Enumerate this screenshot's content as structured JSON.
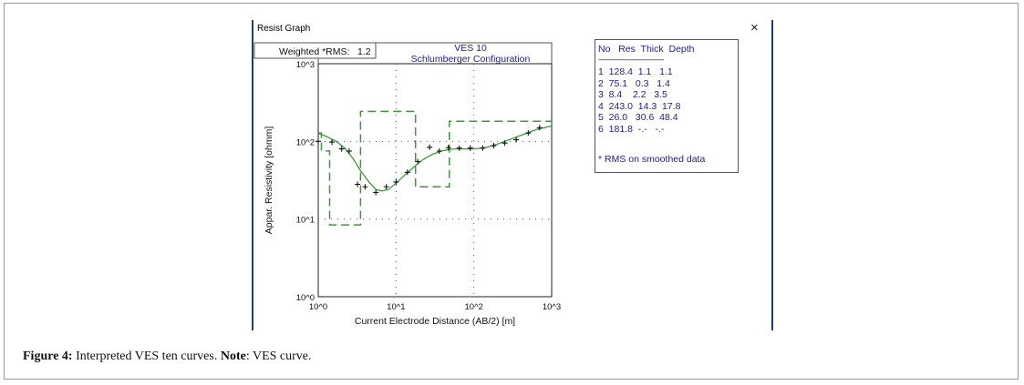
{
  "window": {
    "title": "Resist Graph",
    "close_glyph": "×"
  },
  "rms": {
    "label": "Weighted *RMS:",
    "value": "1.2"
  },
  "header": {
    "line1": "VES 10",
    "line2": "Schlumberger Configuration"
  },
  "layers": {
    "columns": [
      "No",
      "Res",
      "Thick",
      "Depth"
    ],
    "separator": "-------------------------------------------",
    "rows": [
      {
        "no": "1",
        "res": "128.4",
        "thick": "1.1",
        "depth": "1.1"
      },
      {
        "no": "2",
        "res": "75.1",
        "thick": "0.3",
        "depth": "1.4"
      },
      {
        "no": "3",
        "res": "8.4",
        "thick": "2.2",
        "depth": "3.5"
      },
      {
        "no": "4",
        "res": "243.0",
        "thick": "14.3",
        "depth": "17.8"
      },
      {
        "no": "5",
        "res": "26.0",
        "thick": "30.6",
        "depth": "48.4"
      },
      {
        "no": "6",
        "res": "181.8",
        "thick": "-.-",
        "depth": "-.-"
      }
    ],
    "note": "* RMS on smoothed data"
  },
  "caption": {
    "label": "Figure 4:",
    "text": " Interpreted VES ten curves. ",
    "note_label": "Note",
    "note_text": ":  VES curve."
  },
  "colors": {
    "curve": "#3a9a3a",
    "text_blue": "#1b1b9c",
    "window_edge": "#1f3d73"
  },
  "chart_data": {
    "type": "line",
    "xlabel": "Current Electrode Distance (AB/2) [m]",
    "ylabel": "Appar. Resistivity [ohmm]",
    "x_scale": "log",
    "y_scale": "log",
    "xlim": [
      1,
      1000
    ],
    "ylim": [
      1,
      1000
    ],
    "x_ticks": [
      {
        "value": 1,
        "label": "10^0"
      },
      {
        "value": 10,
        "label": "10^1"
      },
      {
        "value": 100,
        "label": "10^2"
      },
      {
        "value": 1000,
        "label": "10^3"
      }
    ],
    "y_ticks": [
      {
        "value": 1,
        "label": "10^0"
      },
      {
        "value": 10,
        "label": "10^1"
      },
      {
        "value": 100,
        "label": "10^2"
      },
      {
        "value": 1000,
        "label": "10^3"
      }
    ],
    "grid": "dotted",
    "series": [
      {
        "kind": "observed-points",
        "x": [
          1.0,
          1.5,
          2.0,
          2.5,
          3.2,
          4.0,
          5.5,
          7.5,
          10.0,
          14.0,
          19.0,
          27.0,
          36.0,
          47.0,
          65.0,
          90.0,
          130.0,
          180.0,
          250.0,
          350.0,
          500.0,
          700.0
        ],
        "y": [
          100,
          98,
          80,
          75,
          28,
          26,
          22,
          26,
          30,
          40,
          55,
          84,
          75,
          83,
          82,
          82,
          82,
          88,
          95,
          105,
          128,
          150
        ]
      },
      {
        "kind": "fitted-curve",
        "x": [
          1.0,
          1.3,
          1.7,
          2.2,
          2.8,
          3.5,
          4.5,
          5.5,
          6.5,
          8.0,
          10.0,
          13.0,
          17.0,
          22.0,
          30.0,
          40.0,
          55.0,
          75.0,
          100.0,
          140.0,
          200.0,
          300.0,
          450.0,
          650.0,
          1000.0
        ],
        "y": [
          127,
          115,
          100,
          82,
          60,
          42,
          30,
          24,
          23,
          24,
          29,
          37,
          47,
          58,
          69,
          76,
          80,
          80,
          80,
          83,
          92,
          107,
          125,
          143,
          158
        ]
      },
      {
        "kind": "layer-model",
        "res": [
          128.4,
          75.1,
          8.4,
          243.0,
          26.0,
          181.8
        ],
        "depth": [
          1.1,
          1.4,
          3.5,
          17.8,
          48.4
        ]
      }
    ]
  }
}
